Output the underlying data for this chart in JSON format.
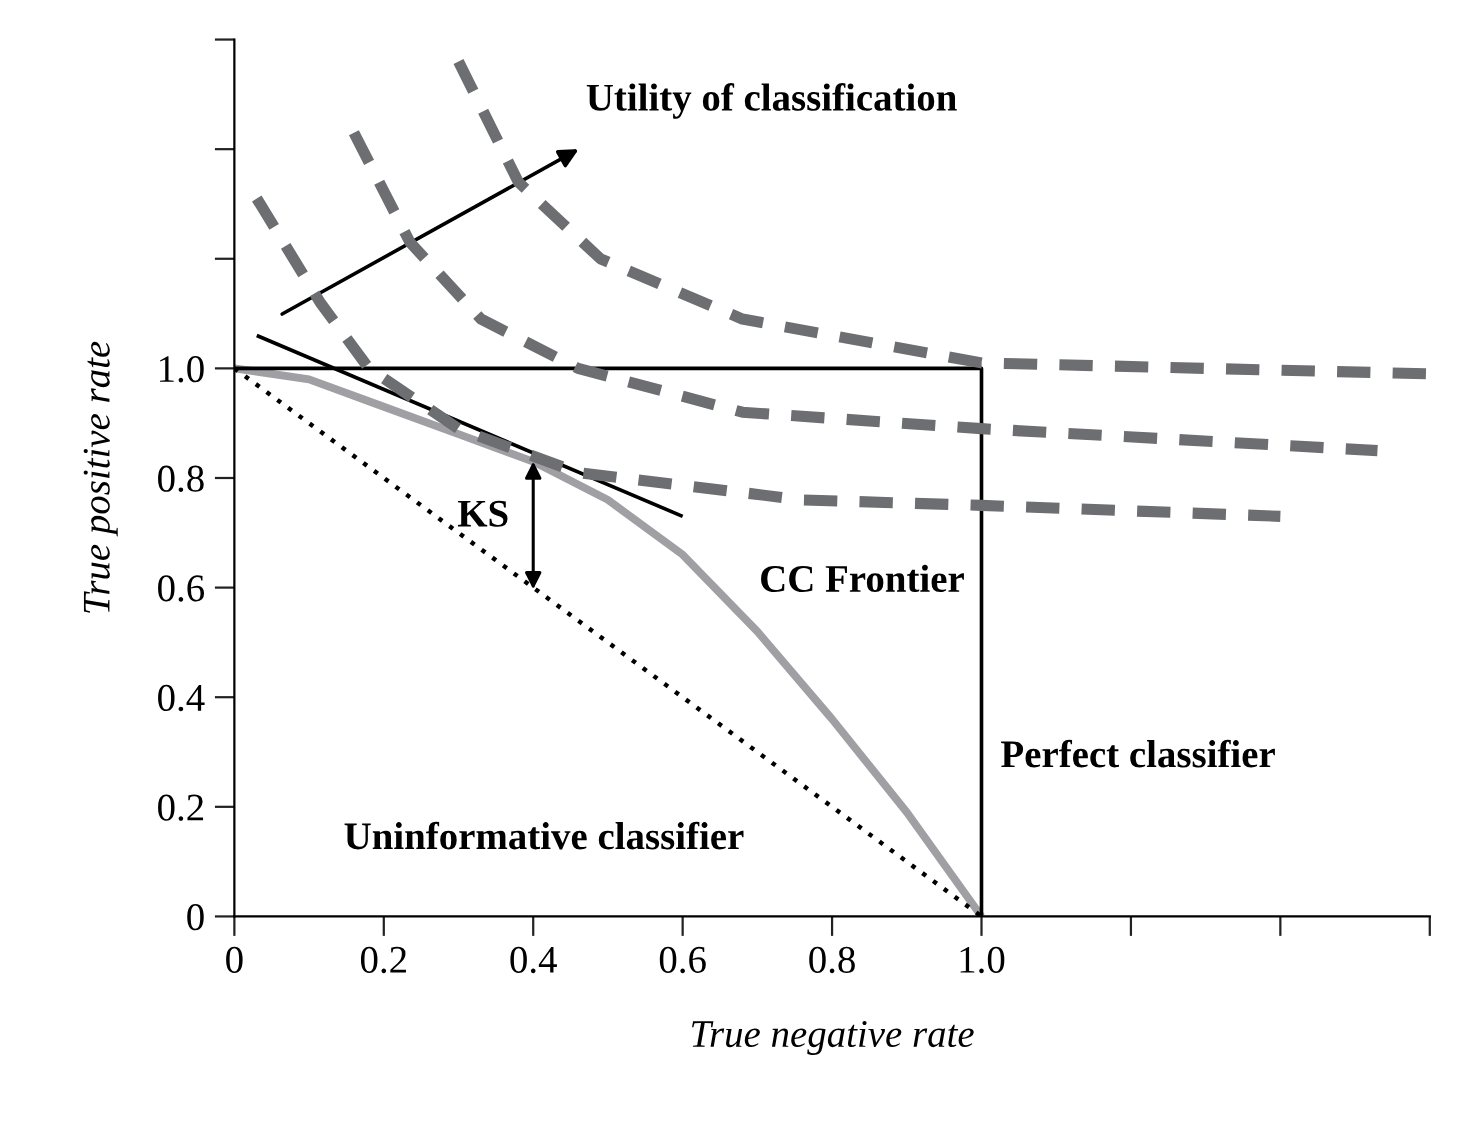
{
  "chart_data": {
    "type": "line",
    "xlabel": "True negative rate",
    "ylabel": "True positive rate",
    "xlim": [
      0,
      1.6
    ],
    "ylim": [
      0,
      1.6
    ],
    "xticks": [
      0,
      0.2,
      0.4,
      0.6,
      0.8,
      {
        "value": 1.0,
        "label": "1.0"
      },
      {
        "value": 1.2,
        "label": null
      },
      {
        "value": 1.4,
        "label": null
      },
      {
        "value": 1.6,
        "label": null
      }
    ],
    "yticks": [
      0,
      0.2,
      0.4,
      0.6,
      0.8,
      {
        "value": 1.0,
        "label": "1.0"
      },
      {
        "value": 1.2,
        "label": null
      },
      {
        "value": 1.4,
        "label": null
      },
      {
        "value": 1.6,
        "label": null
      }
    ],
    "grid": false,
    "legend": false,
    "series": [
      {
        "color": "#a0a0a4",
        "line_style": "solid",
        "x": [
          0,
          0.1,
          0.2,
          0.3,
          0.4,
          0.5,
          0.6,
          0.7,
          0.8,
          0.9,
          1.0
        ],
        "values": [
          1.0,
          0.98,
          0.93,
          0.88,
          0.83,
          0.76,
          0.66,
          0.52,
          0.36,
          0.19,
          0
        ]
      },
      {
        "color": "#000000",
        "line_style": "dotted",
        "x": [
          0,
          1.0
        ],
        "values": [
          1.0,
          0
        ]
      },
      {
        "color": "#000000",
        "line_style": "solid",
        "x": [
          0,
          1.0,
          1.0
        ],
        "values": [
          1.0,
          1.0,
          0
        ]
      },
      {
        "color": "#000000",
        "line_style": "solid",
        "x": [
          0.03,
          0.6
        ],
        "values": [
          1.06,
          0.73
        ]
      },
      {
        "color": "#6d6e71",
        "line_style": "dashed",
        "x": [
          0.03,
          0.115,
          0.18,
          0.3,
          0.46,
          0.76,
          1.0,
          1.4
        ],
        "values": [
          1.31,
          1.12,
          1.0,
          0.89,
          0.81,
          0.76,
          0.75,
          0.73
        ]
      },
      {
        "color": "#6d6e71",
        "line_style": "dashed",
        "x": [
          0.16,
          0.235,
          0.33,
          0.46,
          0.68,
          1.0,
          1.53
        ],
        "values": [
          1.43,
          1.23,
          1.09,
          1.0,
          0.92,
          0.89,
          0.85
        ]
      },
      {
        "color": "#6d6e71",
        "line_style": "dashed",
        "x": [
          0.3,
          0.38,
          0.49,
          0.68,
          1.0,
          1.6
        ],
        "values": [
          1.56,
          1.34,
          1.2,
          1.09,
          1.01,
          0.99
        ]
      }
    ],
    "annotations": [
      "Utility of classification",
      {
        "text": "KS",
        "x": 0.4,
        "y": 0.83
      },
      "CC Frontier",
      "Perfect classifier",
      "Uninformative classifier"
    ]
  }
}
